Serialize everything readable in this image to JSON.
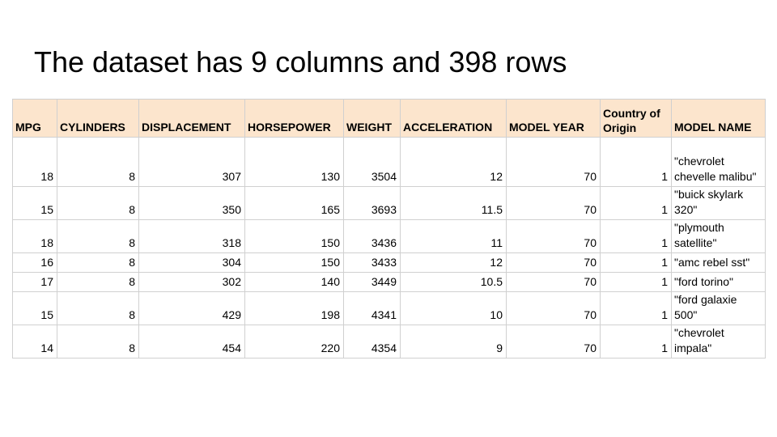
{
  "slide": {
    "title": "The dataset has 9 columns and 398 rows"
  },
  "table": {
    "headers": [
      "MPG",
      "CYLINDERS",
      "DISPLACEMENT",
      "HORSEPOWER",
      "WEIGHT",
      "ACCELERATION",
      "MODEL YEAR",
      "Country of Origin",
      "MODEL NAME"
    ],
    "rows": [
      [
        "18",
        "8",
        "307",
        "130",
        "3504",
        "12",
        "70",
        "1",
        "\"chevrolet chevelle malibu\""
      ],
      [
        "15",
        "8",
        "350",
        "165",
        "3693",
        "11.5",
        "70",
        "1",
        "\"buick skylark 320\""
      ],
      [
        "18",
        "8",
        "318",
        "150",
        "3436",
        "11",
        "70",
        "1",
        "\"plymouth satellite\""
      ],
      [
        "16",
        "8",
        "304",
        "150",
        "3433",
        "12",
        "70",
        "1",
        "\"amc rebel sst\""
      ],
      [
        "17",
        "8",
        "302",
        "140",
        "3449",
        "10.5",
        "70",
        "1",
        "\"ford torino\""
      ],
      [
        "15",
        "8",
        "429",
        "198",
        "4341",
        "10",
        "70",
        "1",
        "\"ford galaxie 500\""
      ],
      [
        "14",
        "8",
        "454",
        "220",
        "4354",
        "9",
        "70",
        "1",
        "\"chevrolet impala\""
      ]
    ]
  },
  "colors": {
    "header_bg": "#fce5cd",
    "grid": "#d0d0d0"
  }
}
